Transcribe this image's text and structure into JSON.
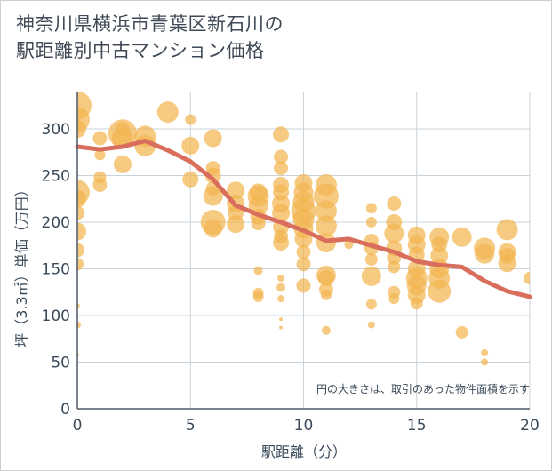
{
  "title": {
    "line1": "神奈川県横浜市青葉区新石川の",
    "line2": "駅距離別中古マンション価格"
  },
  "note": "円の大きさは、取引のあった物件面積を示す",
  "colors": {
    "bubble": "#f2b550",
    "line": "#d96e5c",
    "grid": "#c9d3dc",
    "axis": "#4b5a69"
  },
  "chart_data": {
    "type": "scatter",
    "xlabel": "駅距離（分）",
    "ylabel": "坪（3.3㎡）単価（万円）",
    "xlim": [
      0,
      20
    ],
    "ylim": [
      0,
      340
    ],
    "xticks": [
      0,
      5,
      10,
      15,
      20
    ],
    "yticks": [
      0,
      50,
      100,
      150,
      200,
      250,
      300
    ],
    "grid": true,
    "bubbles": [
      {
        "x": 0,
        "y": 325,
        "s": 16
      },
      {
        "x": 0,
        "y": 310,
        "s": 14
      },
      {
        "x": 0,
        "y": 300,
        "s": 10
      },
      {
        "x": 0,
        "y": 232,
        "s": 14
      },
      {
        "x": 0,
        "y": 225,
        "s": 10
      },
      {
        "x": 0,
        "y": 210,
        "s": 8
      },
      {
        "x": 0,
        "y": 190,
        "s": 10
      },
      {
        "x": 0,
        "y": 170,
        "s": 8
      },
      {
        "x": 0,
        "y": 155,
        "s": 7
      },
      {
        "x": 0,
        "y": 110,
        "s": 3
      },
      {
        "x": 0,
        "y": 90,
        "s": 4
      },
      {
        "x": 0,
        "y": 58,
        "s": 2
      },
      {
        "x": 1,
        "y": 290,
        "s": 8
      },
      {
        "x": 1,
        "y": 248,
        "s": 7
      },
      {
        "x": 1,
        "y": 240,
        "s": 8
      },
      {
        "x": 1,
        "y": 272,
        "s": 6
      },
      {
        "x": 2,
        "y": 295,
        "s": 16
      },
      {
        "x": 2,
        "y": 290,
        "s": 12
      },
      {
        "x": 2,
        "y": 262,
        "s": 10
      },
      {
        "x": 2,
        "y": 300,
        "s": 8
      },
      {
        "x": 3,
        "y": 292,
        "s": 12
      },
      {
        "x": 3,
        "y": 282,
        "s": 12
      },
      {
        "x": 4,
        "y": 318,
        "s": 12
      },
      {
        "x": 5,
        "y": 310,
        "s": 6
      },
      {
        "x": 5,
        "y": 282,
        "s": 10
      },
      {
        "x": 5,
        "y": 246,
        "s": 9
      },
      {
        "x": 6,
        "y": 290,
        "s": 10
      },
      {
        "x": 6,
        "y": 258,
        "s": 8
      },
      {
        "x": 6,
        "y": 250,
        "s": 9
      },
      {
        "x": 6,
        "y": 236,
        "s": 8
      },
      {
        "x": 6,
        "y": 228,
        "s": 11
      },
      {
        "x": 6,
        "y": 200,
        "s": 14
      },
      {
        "x": 6,
        "y": 193,
        "s": 10
      },
      {
        "x": 7,
        "y": 234,
        "s": 10
      },
      {
        "x": 7,
        "y": 220,
        "s": 10
      },
      {
        "x": 7,
        "y": 210,
        "s": 9
      },
      {
        "x": 7,
        "y": 198,
        "s": 10
      },
      {
        "x": 8,
        "y": 232,
        "s": 10
      },
      {
        "x": 8,
        "y": 228,
        "s": 12
      },
      {
        "x": 8,
        "y": 218,
        "s": 11
      },
      {
        "x": 8,
        "y": 206,
        "s": 9
      },
      {
        "x": 8,
        "y": 199,
        "s": 8
      },
      {
        "x": 8,
        "y": 148,
        "s": 5
      },
      {
        "x": 8,
        "y": 124,
        "s": 6
      },
      {
        "x": 8,
        "y": 120,
        "s": 6
      },
      {
        "x": 9,
        "y": 294,
        "s": 9
      },
      {
        "x": 9,
        "y": 270,
        "s": 8
      },
      {
        "x": 9,
        "y": 258,
        "s": 8
      },
      {
        "x": 9,
        "y": 240,
        "s": 9
      },
      {
        "x": 9,
        "y": 232,
        "s": 9
      },
      {
        "x": 9,
        "y": 220,
        "s": 10
      },
      {
        "x": 9,
        "y": 210,
        "s": 10
      },
      {
        "x": 9,
        "y": 195,
        "s": 9
      },
      {
        "x": 9,
        "y": 185,
        "s": 8
      },
      {
        "x": 9,
        "y": 178,
        "s": 9
      },
      {
        "x": 9,
        "y": 140,
        "s": 4
      },
      {
        "x": 9,
        "y": 130,
        "s": 5
      },
      {
        "x": 9,
        "y": 118,
        "s": 4
      },
      {
        "x": 9,
        "y": 96,
        "s": 2
      },
      {
        "x": 9,
        "y": 87,
        "s": 2
      },
      {
        "x": 10,
        "y": 242,
        "s": 10
      },
      {
        "x": 10,
        "y": 232,
        "s": 11
      },
      {
        "x": 10,
        "y": 222,
        "s": 12
      },
      {
        "x": 10,
        "y": 212,
        "s": 14
      },
      {
        "x": 10,
        "y": 203,
        "s": 12
      },
      {
        "x": 10,
        "y": 193,
        "s": 11
      },
      {
        "x": 10,
        "y": 182,
        "s": 10
      },
      {
        "x": 10,
        "y": 168,
        "s": 8
      },
      {
        "x": 10,
        "y": 155,
        "s": 8
      },
      {
        "x": 10,
        "y": 132,
        "s": 8
      },
      {
        "x": 11,
        "y": 240,
        "s": 12
      },
      {
        "x": 11,
        "y": 228,
        "s": 14
      },
      {
        "x": 11,
        "y": 212,
        "s": 12
      },
      {
        "x": 11,
        "y": 196,
        "s": 12
      },
      {
        "x": 11,
        "y": 178,
        "s": 11
      },
      {
        "x": 11,
        "y": 143,
        "s": 11
      },
      {
        "x": 11,
        "y": 140,
        "s": 9
      },
      {
        "x": 11,
        "y": 128,
        "s": 8
      },
      {
        "x": 11,
        "y": 122,
        "s": 6
      },
      {
        "x": 11,
        "y": 84,
        "s": 5
      },
      {
        "x": 12,
        "y": 176,
        "s": 5
      },
      {
        "x": 13,
        "y": 215,
        "s": 6
      },
      {
        "x": 13,
        "y": 200,
        "s": 6
      },
      {
        "x": 13,
        "y": 180,
        "s": 8
      },
      {
        "x": 13,
        "y": 172,
        "s": 8
      },
      {
        "x": 13,
        "y": 160,
        "s": 7
      },
      {
        "x": 13,
        "y": 142,
        "s": 11
      },
      {
        "x": 13,
        "y": 112,
        "s": 6
      },
      {
        "x": 13,
        "y": 90,
        "s": 4
      },
      {
        "x": 14,
        "y": 220,
        "s": 8
      },
      {
        "x": 14,
        "y": 200,
        "s": 9
      },
      {
        "x": 14,
        "y": 188,
        "s": 11
      },
      {
        "x": 14,
        "y": 172,
        "s": 9
      },
      {
        "x": 14,
        "y": 162,
        "s": 8
      },
      {
        "x": 14,
        "y": 152,
        "s": 7
      },
      {
        "x": 14,
        "y": 125,
        "s": 7
      },
      {
        "x": 14,
        "y": 118,
        "s": 6
      },
      {
        "x": 15,
        "y": 186,
        "s": 10
      },
      {
        "x": 15,
        "y": 176,
        "s": 10
      },
      {
        "x": 15,
        "y": 165,
        "s": 9
      },
      {
        "x": 15,
        "y": 150,
        "s": 10
      },
      {
        "x": 15,
        "y": 140,
        "s": 12
      },
      {
        "x": 15,
        "y": 132,
        "s": 11
      },
      {
        "x": 15,
        "y": 122,
        "s": 10
      },
      {
        "x": 15,
        "y": 113,
        "s": 7
      },
      {
        "x": 16,
        "y": 184,
        "s": 11
      },
      {
        "x": 16,
        "y": 176,
        "s": 9
      },
      {
        "x": 16,
        "y": 164,
        "s": 10
      },
      {
        "x": 16,
        "y": 150,
        "s": 11
      },
      {
        "x": 16,
        "y": 140,
        "s": 12
      },
      {
        "x": 16,
        "y": 126,
        "s": 13
      },
      {
        "x": 17,
        "y": 184,
        "s": 11
      },
      {
        "x": 17,
        "y": 82,
        "s": 7
      },
      {
        "x": 18,
        "y": 172,
        "s": 12
      },
      {
        "x": 18,
        "y": 166,
        "s": 11
      },
      {
        "x": 18,
        "y": 60,
        "s": 4
      },
      {
        "x": 18,
        "y": 50,
        "s": 4
      },
      {
        "x": 19,
        "y": 192,
        "s": 12
      },
      {
        "x": 19,
        "y": 168,
        "s": 10
      },
      {
        "x": 19,
        "y": 164,
        "s": 9
      },
      {
        "x": 19,
        "y": 156,
        "s": 10
      },
      {
        "x": 20,
        "y": 140,
        "s": 7
      }
    ],
    "trend": [
      {
        "x": 0,
        "y": 281
      },
      {
        "x": 1,
        "y": 278
      },
      {
        "x": 2,
        "y": 281
      },
      {
        "x": 3,
        "y": 287
      },
      {
        "x": 4,
        "y": 277
      },
      {
        "x": 5,
        "y": 265
      },
      {
        "x": 6,
        "y": 246
      },
      {
        "x": 7,
        "y": 218
      },
      {
        "x": 8,
        "y": 208
      },
      {
        "x": 9,
        "y": 200
      },
      {
        "x": 10,
        "y": 191
      },
      {
        "x": 11,
        "y": 180
      },
      {
        "x": 12,
        "y": 182
      },
      {
        "x": 13,
        "y": 175
      },
      {
        "x": 14,
        "y": 168
      },
      {
        "x": 15,
        "y": 158
      },
      {
        "x": 16,
        "y": 154
      },
      {
        "x": 17,
        "y": 152
      },
      {
        "x": 18,
        "y": 137
      },
      {
        "x": 19,
        "y": 126
      },
      {
        "x": 20,
        "y": 120
      }
    ]
  }
}
